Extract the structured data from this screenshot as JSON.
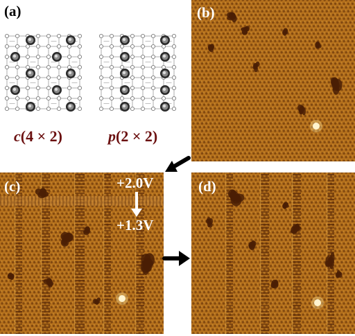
{
  "panels": {
    "a": {
      "label": "(a)"
    },
    "b": {
      "label": "(b)"
    },
    "c": {
      "label": "(c)",
      "voltage_start": "+2.0V",
      "voltage_end": "+1.3V"
    },
    "d": {
      "label": "(d)"
    }
  },
  "captions": {
    "left": {
      "letter": "c",
      "text": "(4 × 2)"
    },
    "right": {
      "letter": "p",
      "text": "(2 × 2)"
    }
  },
  "colors": {
    "stm_base": "#b8741c",
    "stm_bright": "#e2a848",
    "stm_dark": "#5a2a08",
    "caption": "#6b1010",
    "arrow": "#000000"
  },
  "icons": {
    "arrow_b_to_c": "arrow-down-left-icon",
    "arrow_c_to_d": "arrow-right-icon",
    "voltage_arrow": "arrow-down-icon"
  }
}
